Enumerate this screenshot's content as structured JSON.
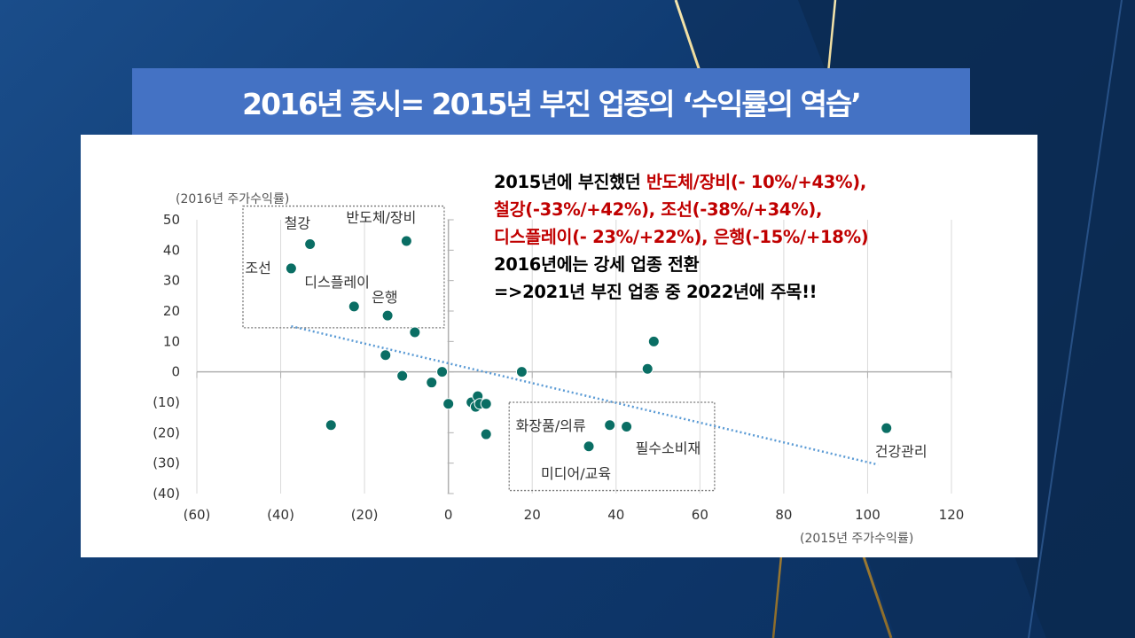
{
  "slide": {
    "title": "2016년 증시= 2015년 부진 업종의 ‘수익률의 역습’"
  },
  "annotation": {
    "line1_prefix": "2015년에 부진했던 ",
    "line1_red": "반도체/장비(- 10%/+43%),",
    "line2_red": "철강(-33%/+42%), 조선(-38%/+34%),",
    "line3_red": "디스플레이(- 23%/+22%), 은행(-15%/+18%)",
    "line4": "2016년에는 강세 업종 전환",
    "line5": "=>2021년 부진 업종 중 2022년에 주목!!"
  },
  "colors": {
    "background": "#0f3a70",
    "title_banner": "#4472c4",
    "point": "#0a6e64",
    "trend": "#5b9bd5",
    "highlight_text": "#c00000"
  },
  "chart_data": {
    "type": "scatter",
    "xlabel": "(2015년 주가수익률)",
    "ylabel": "(2016년 주가수익률)",
    "xlim": [
      -60,
      120
    ],
    "ylim": [
      -40,
      50
    ],
    "xticks": [
      -60,
      -40,
      -20,
      0,
      20,
      40,
      60,
      80,
      100,
      120
    ],
    "yticks": [
      50,
      40,
      30,
      20,
      10,
      0,
      -10,
      -20,
      -30,
      -40
    ],
    "xtick_labels": [
      "(60)",
      "(40)",
      "(20)",
      "0",
      "20",
      "40",
      "60",
      "80",
      "100",
      "120"
    ],
    "ytick_labels": [
      "50",
      "40",
      "30",
      "20",
      "10",
      "0",
      "(10)",
      "(20)",
      "(30)",
      "(40)"
    ],
    "points": [
      {
        "x": -33,
        "y": 42,
        "label": "철강"
      },
      {
        "x": -10,
        "y": 43,
        "label": "반도체/장비"
      },
      {
        "x": -37.5,
        "y": 34,
        "label": "조선"
      },
      {
        "x": -22.5,
        "y": 21.5,
        "label": "디스플레이"
      },
      {
        "x": -14.5,
        "y": 18.5,
        "label": "은행"
      },
      {
        "x": -8,
        "y": 13,
        "label": ""
      },
      {
        "x": -15,
        "y": 5.5,
        "label": ""
      },
      {
        "x": -11,
        "y": -1.3,
        "label": ""
      },
      {
        "x": -4,
        "y": -3.5,
        "label": ""
      },
      {
        "x": -1.5,
        "y": 0,
        "label": ""
      },
      {
        "x": 0,
        "y": -10.5,
        "label": ""
      },
      {
        "x": 5.5,
        "y": -10,
        "label": ""
      },
      {
        "x": 6.5,
        "y": -11.5,
        "label": ""
      },
      {
        "x": 7,
        "y": -8,
        "label": ""
      },
      {
        "x": 7.5,
        "y": -10.5,
        "label": ""
      },
      {
        "x": 9,
        "y": -10.5,
        "label": ""
      },
      {
        "x": 9,
        "y": -20.5,
        "label": ""
      },
      {
        "x": 17.5,
        "y": 0,
        "label": ""
      },
      {
        "x": 38.5,
        "y": -17.5,
        "label": "화장품/의류"
      },
      {
        "x": 42.5,
        "y": -18,
        "label": "필수소비재"
      },
      {
        "x": 33.5,
        "y": -24.5,
        "label": "미디어/교육"
      },
      {
        "x": 47.5,
        "y": 1,
        "label": ""
      },
      {
        "x": 49,
        "y": 10,
        "label": ""
      },
      {
        "x": -28,
        "y": -17.5,
        "label": ""
      },
      {
        "x": 104.5,
        "y": -18.5,
        "label": "건강관리"
      }
    ],
    "trendline": {
      "x": [
        -37.5,
        102.5
      ],
      "y": [
        15,
        -30.5
      ]
    },
    "highlight_boxes": [
      {
        "x": [
          -49,
          -1
        ],
        "y": [
          14.5,
          54.5
        ]
      },
      {
        "x": [
          14.5,
          63.5
        ],
        "y": [
          -39,
          -10
        ]
      }
    ]
  }
}
